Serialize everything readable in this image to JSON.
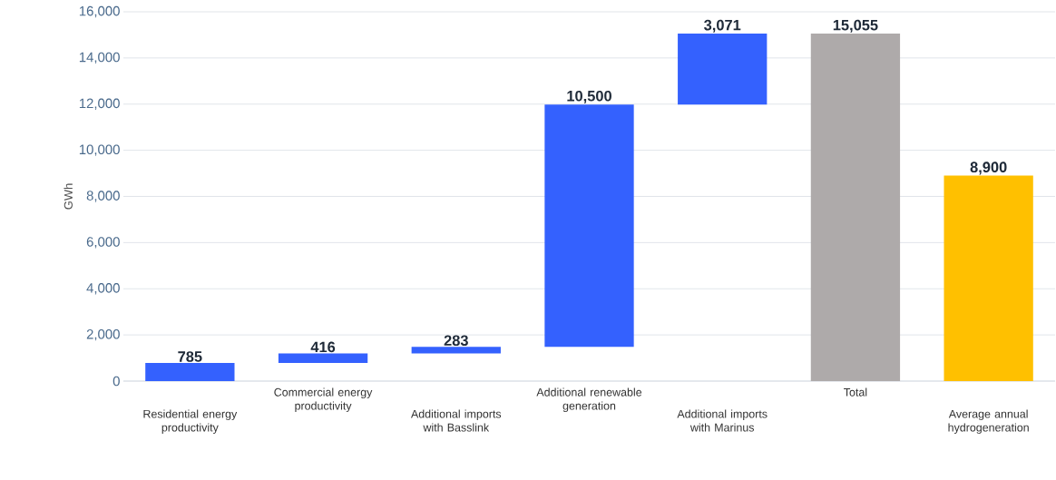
{
  "chart_data": {
    "type": "bar",
    "ylabel": "GWh",
    "categories": [
      "Residential energy productivity",
      "Commercial energy productivity",
      "Additional imports with Basslink",
      "Additional renewable generation",
      "Additional imports with Marinus",
      "Total",
      "Average annual hydrogeneration"
    ],
    "values": [
      785,
      416,
      283,
      10500,
      3071,
      15055,
      8900
    ],
    "base": [
      0,
      785,
      1201,
      1484,
      11984,
      0,
      0
    ],
    "colors": [
      "#3461fe",
      "#3461fe",
      "#3461fe",
      "#3461fe",
      "#3461fe",
      "#aeaaaa",
      "#ffc000"
    ],
    "value_labels": [
      "785",
      "416",
      "283",
      "10,500",
      "3,071",
      "15,055",
      "8,900"
    ],
    "ylim": [
      0,
      16000
    ],
    "yticks": [
      {
        "value": 0,
        "label": "0"
      },
      {
        "value": 2000,
        "label": "2,000"
      },
      {
        "value": 4000,
        "label": "4,000"
      },
      {
        "value": 6000,
        "label": "6,000"
      },
      {
        "value": 8000,
        "label": "8,000"
      },
      {
        "value": 10000,
        "label": "10,000"
      },
      {
        "value": 12000,
        "label": "12,000"
      },
      {
        "value": 14000,
        "label": "14,000"
      },
      {
        "value": 16000,
        "label": "16,000"
      }
    ],
    "grid": "y"
  }
}
